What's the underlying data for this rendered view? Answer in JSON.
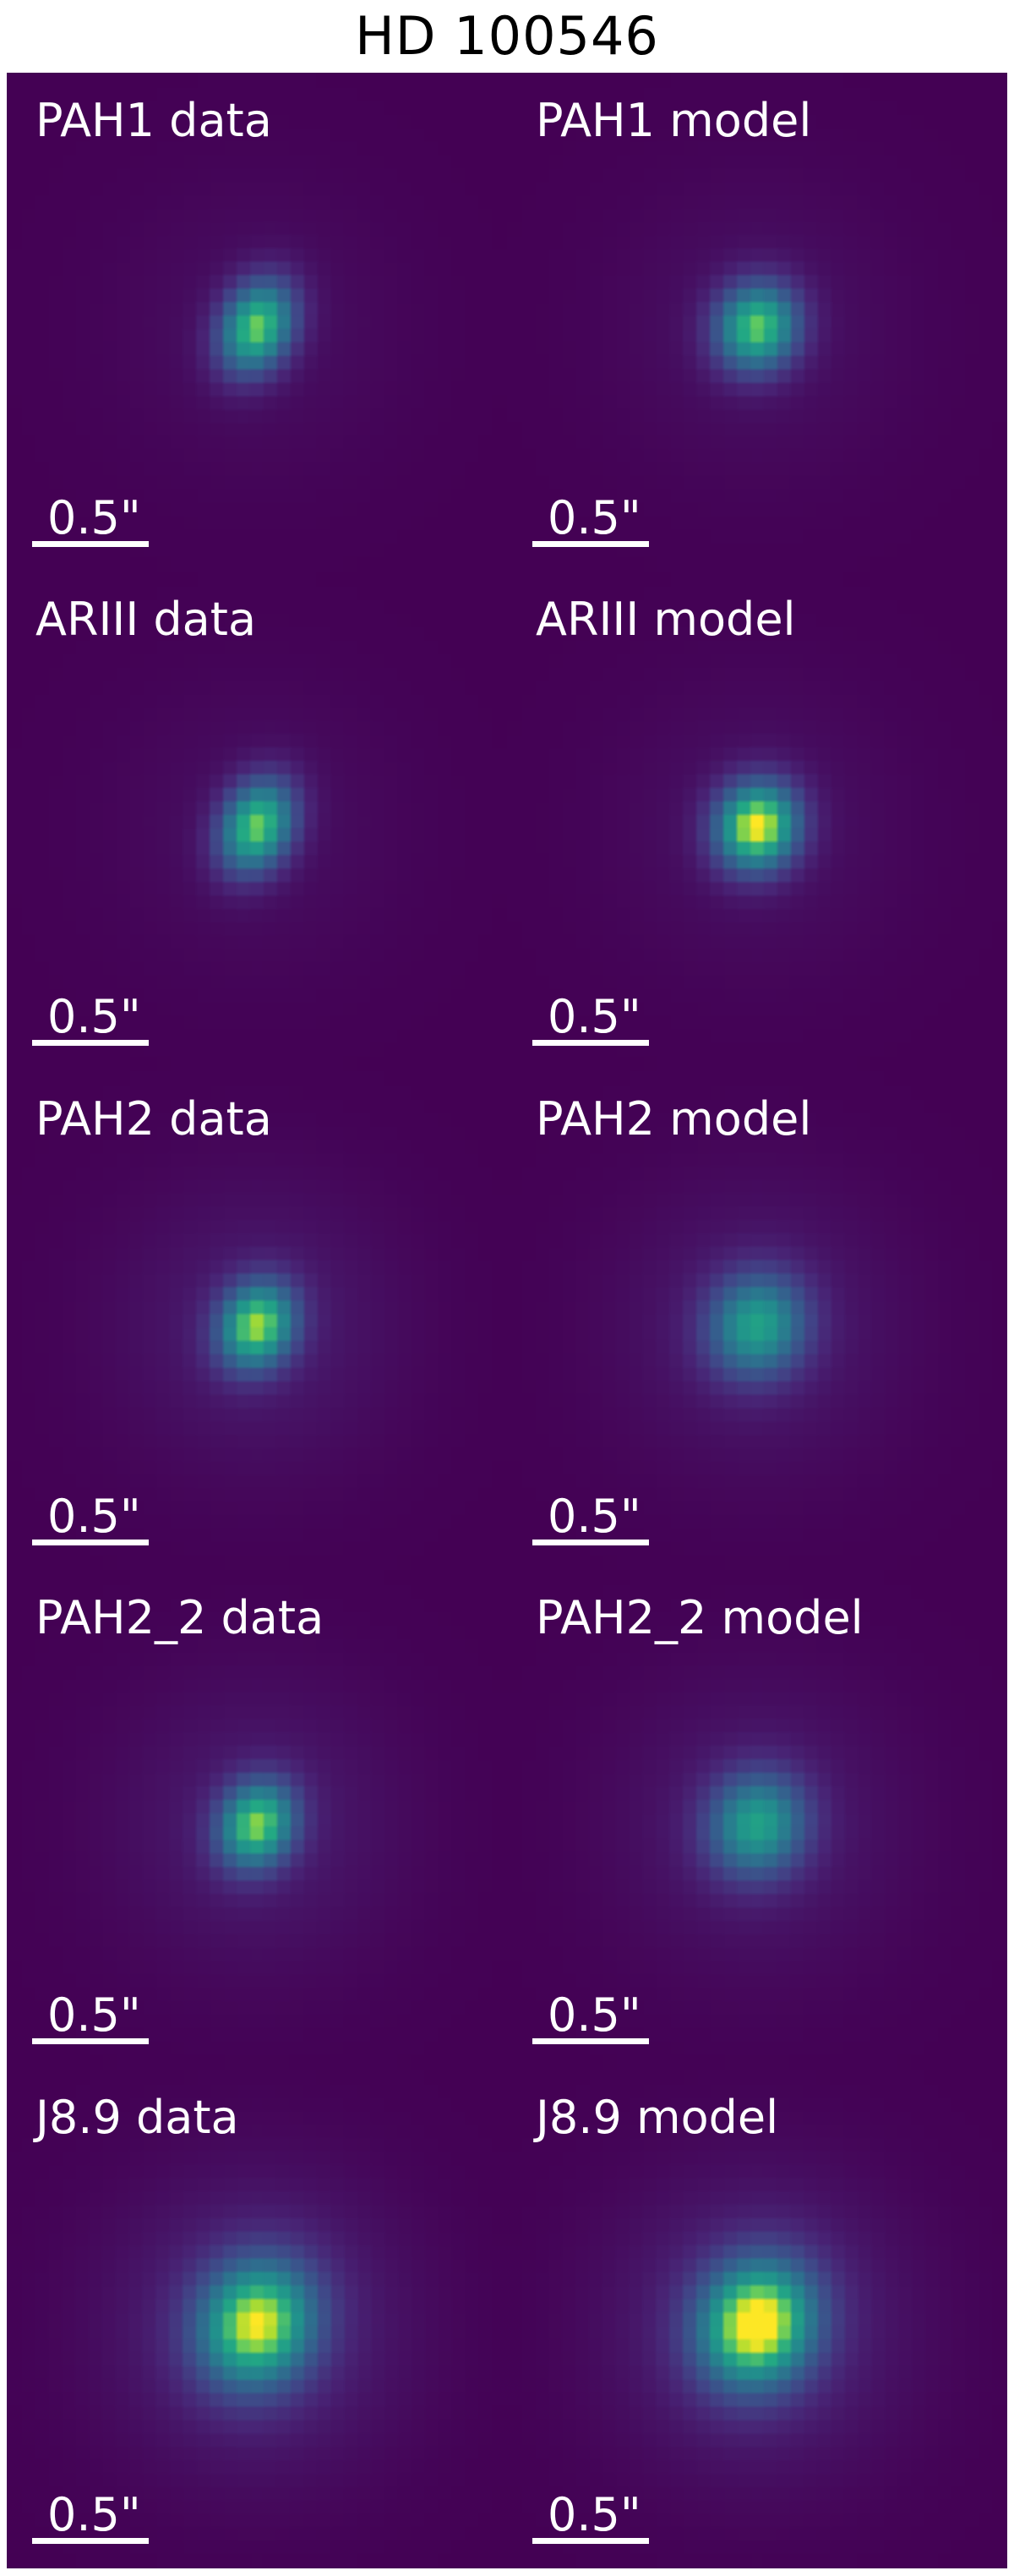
{
  "figure": {
    "title": "HD 100546"
  },
  "colormap": "viridis",
  "panels": [
    {
      "label": "PAH1 data",
      "scale_label": "0.5\"",
      "peak": 0.82,
      "sigma_x": 0.095,
      "sigma_y": 0.13,
      "halo": 0.05
    },
    {
      "label": "PAH1 model",
      "scale_label": "0.5\"",
      "peak": 0.8,
      "sigma_x": 0.11,
      "sigma_y": 0.12,
      "halo": 0.06
    },
    {
      "label": "ARIII data",
      "scale_label": "0.5\"",
      "peak": 0.82,
      "sigma_x": 0.095,
      "sigma_y": 0.13,
      "halo": 0.05
    },
    {
      "label": "ARIII model",
      "scale_label": "0.5\"",
      "peak": 0.96,
      "sigma_x": 0.11,
      "sigma_y": 0.12,
      "halo": 0.06
    },
    {
      "label": "PAH2 data",
      "scale_label": "0.5\"",
      "peak": 0.83,
      "sigma_x": 0.1,
      "sigma_y": 0.12,
      "halo": 0.1
    },
    {
      "label": "PAH2 model",
      "scale_label": "0.5\"",
      "peak": 0.62,
      "sigma_x": 0.13,
      "sigma_y": 0.14,
      "halo": 0.1
    },
    {
      "label": "PAH2_2 data",
      "scale_label": "0.5\"",
      "peak": 0.8,
      "sigma_x": 0.1,
      "sigma_y": 0.12,
      "halo": 0.1
    },
    {
      "label": "PAH2_2 model",
      "scale_label": "0.5\"",
      "peak": 0.62,
      "sigma_x": 0.13,
      "sigma_y": 0.14,
      "halo": 0.1
    },
    {
      "label": "J8.9 data",
      "scale_label": "0.5\"",
      "peak": 0.85,
      "sigma_x": 0.15,
      "sigma_y": 0.17,
      "halo": 0.16
    },
    {
      "label": "J8.9 model",
      "scale_label": "0.5\"",
      "peak": 0.95,
      "sigma_x": 0.15,
      "sigma_y": 0.17,
      "halo": 0.16
    }
  ]
}
